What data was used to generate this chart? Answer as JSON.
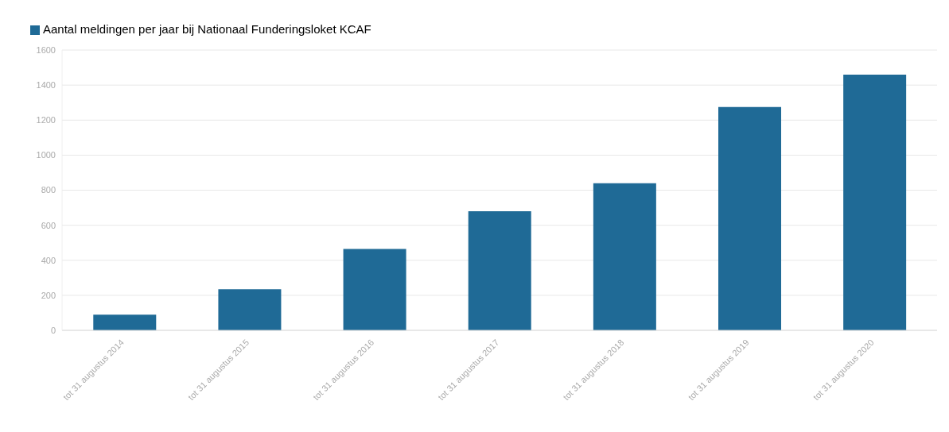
{
  "chart_data": {
    "type": "bar",
    "categories": [
      "tot 31 augustus 2014",
      "tot 31 augustus 2015",
      "tot 31 augustus 2016",
      "tot 31 augustus 2017",
      "tot 31 augustus 2018",
      "tot 31 augustus 2019",
      "tot 31 augustus 2020"
    ],
    "series": [
      {
        "name": "Aantal meldingen per jaar bij Nationaal Funderingsloket KCAF",
        "color": "#1f6a96",
        "values": [
          90,
          235,
          465,
          680,
          840,
          1275,
          1460
        ]
      }
    ],
    "ylim": [
      0,
      1600
    ],
    "yticks": [
      0,
      200,
      400,
      600,
      800,
      1000,
      1200,
      1400,
      1600
    ],
    "grid": "y",
    "legend": "top left"
  }
}
